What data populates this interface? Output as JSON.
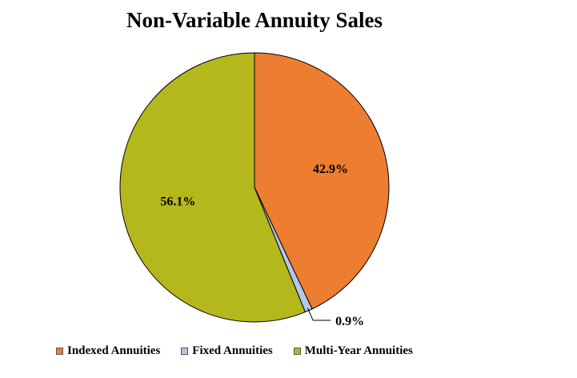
{
  "chart_data": {
    "type": "pie",
    "title": "Non-Variable Annuity Sales",
    "slices": [
      {
        "name": "Indexed Annuities",
        "value": 42.9,
        "label": "42.9%",
        "color": "#ED7D31"
      },
      {
        "name": "Fixed Annuities",
        "value": 0.9,
        "label": "0.9%",
        "color": "#B4C7E7"
      },
      {
        "name": "Multi-Year Annuities",
        "value": 56.1,
        "label": "56.1%",
        "color": "#B5B81C"
      }
    ],
    "start_angle_deg": 0,
    "direction": "clockwise",
    "legend_position": "bottom"
  }
}
